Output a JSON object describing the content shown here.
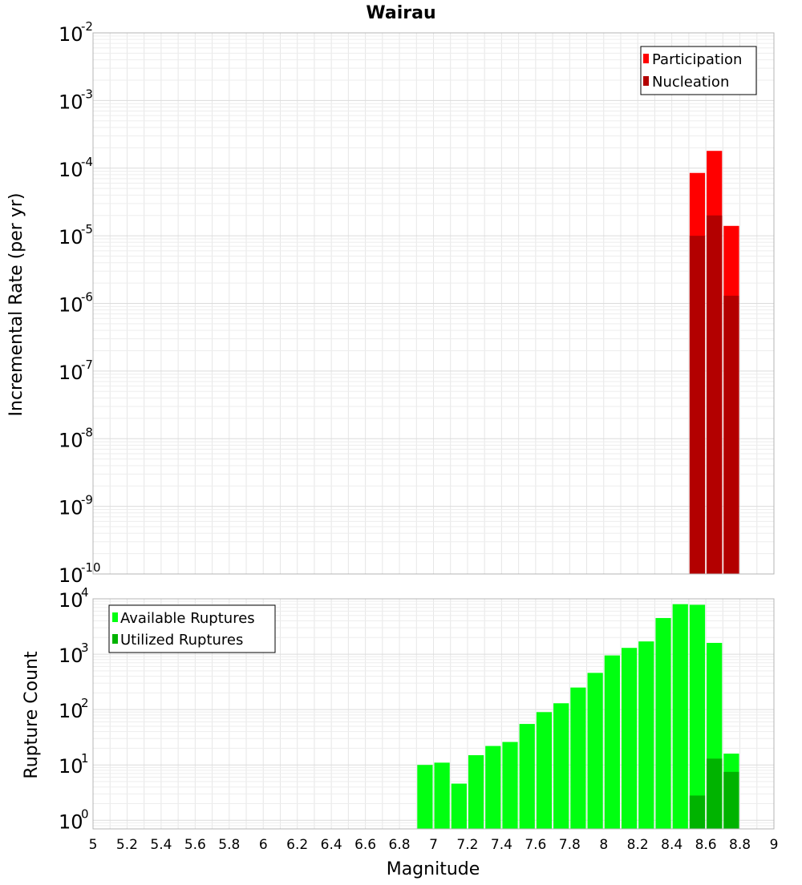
{
  "chart_data": [
    {
      "type": "bar",
      "title": "Wairau",
      "ylabel": "Incremental Rate (per yr)",
      "xlabel": "",
      "y_scale": "log",
      "ylim": [
        1e-10,
        0.01
      ],
      "xlim": [
        5,
        9
      ],
      "grid": true,
      "legend_position": "top-right",
      "bar_width": 0.1,
      "series": [
        {
          "name": "Participation",
          "color": "#ff0000",
          "x": [
            8.55,
            8.65,
            8.75
          ],
          "values": [
            8.5e-05,
            0.00018,
            1.4e-05
          ]
        },
        {
          "name": "Nucleation",
          "color": "#b30000",
          "x": [
            8.55,
            8.65,
            8.75
          ],
          "values": [
            1e-05,
            2e-05,
            1.3e-06
          ]
        }
      ],
      "y_ticks": [
        {
          "base": "10",
          "exp": "-10",
          "value": 1e-10
        },
        {
          "base": "10",
          "exp": "-9",
          "value": 1e-09
        },
        {
          "base": "10",
          "exp": "-8",
          "value": 1e-08
        },
        {
          "base": "10",
          "exp": "-7",
          "value": 1e-07
        },
        {
          "base": "10",
          "exp": "-6",
          "value": 1e-06
        },
        {
          "base": "10",
          "exp": "-5",
          "value": 1e-05
        },
        {
          "base": "10",
          "exp": "-4",
          "value": 0.0001
        },
        {
          "base": "10",
          "exp": "-3",
          "value": 0.001
        },
        {
          "base": "10",
          "exp": "-2",
          "value": 0.01
        }
      ]
    },
    {
      "type": "bar",
      "title": "",
      "ylabel": "Rupture Count",
      "xlabel": "Magnitude",
      "y_scale": "log",
      "ylim": [
        0.7,
        10000
      ],
      "xlim": [
        5,
        9
      ],
      "grid": true,
      "legend_position": "top-left",
      "bar_width": 0.1,
      "x_tick_labels": [
        "5",
        "5.2",
        "5.4",
        "5.6",
        "5.8",
        "6",
        "6.2",
        "6.4",
        "6.6",
        "6.8",
        "7",
        "7.2",
        "7.4",
        "7.6",
        "7.8",
        "8",
        "8.2",
        "8.4",
        "8.6",
        "8.8",
        "9"
      ],
      "series": [
        {
          "name": "Available Ruptures",
          "color": "#00ff10",
          "x": [
            6.95,
            7.05,
            7.15,
            7.25,
            7.35,
            7.45,
            7.55,
            7.65,
            7.75,
            7.85,
            7.95,
            8.05,
            8.15,
            8.25,
            8.35,
            8.45,
            8.55,
            8.65,
            8.75
          ],
          "values": [
            10,
            11,
            4.6,
            15,
            22,
            26,
            55,
            90,
            130,
            250,
            460,
            950,
            1300,
            1700,
            4500,
            8000,
            7800,
            1600,
            16
          ]
        },
        {
          "name": "Utilized Ruptures",
          "color": "#00b300",
          "x": [
            8.55,
            8.65,
            8.75
          ],
          "values": [
            2.8,
            13,
            7.5
          ]
        }
      ],
      "y_ticks": [
        {
          "base": "10",
          "exp": "0",
          "value": 1
        },
        {
          "base": "10",
          "exp": "1",
          "value": 10
        },
        {
          "base": "10",
          "exp": "2",
          "value": 100
        },
        {
          "base": "10",
          "exp": "3",
          "value": 1000
        },
        {
          "base": "10",
          "exp": "4",
          "value": 10000
        }
      ]
    }
  ]
}
